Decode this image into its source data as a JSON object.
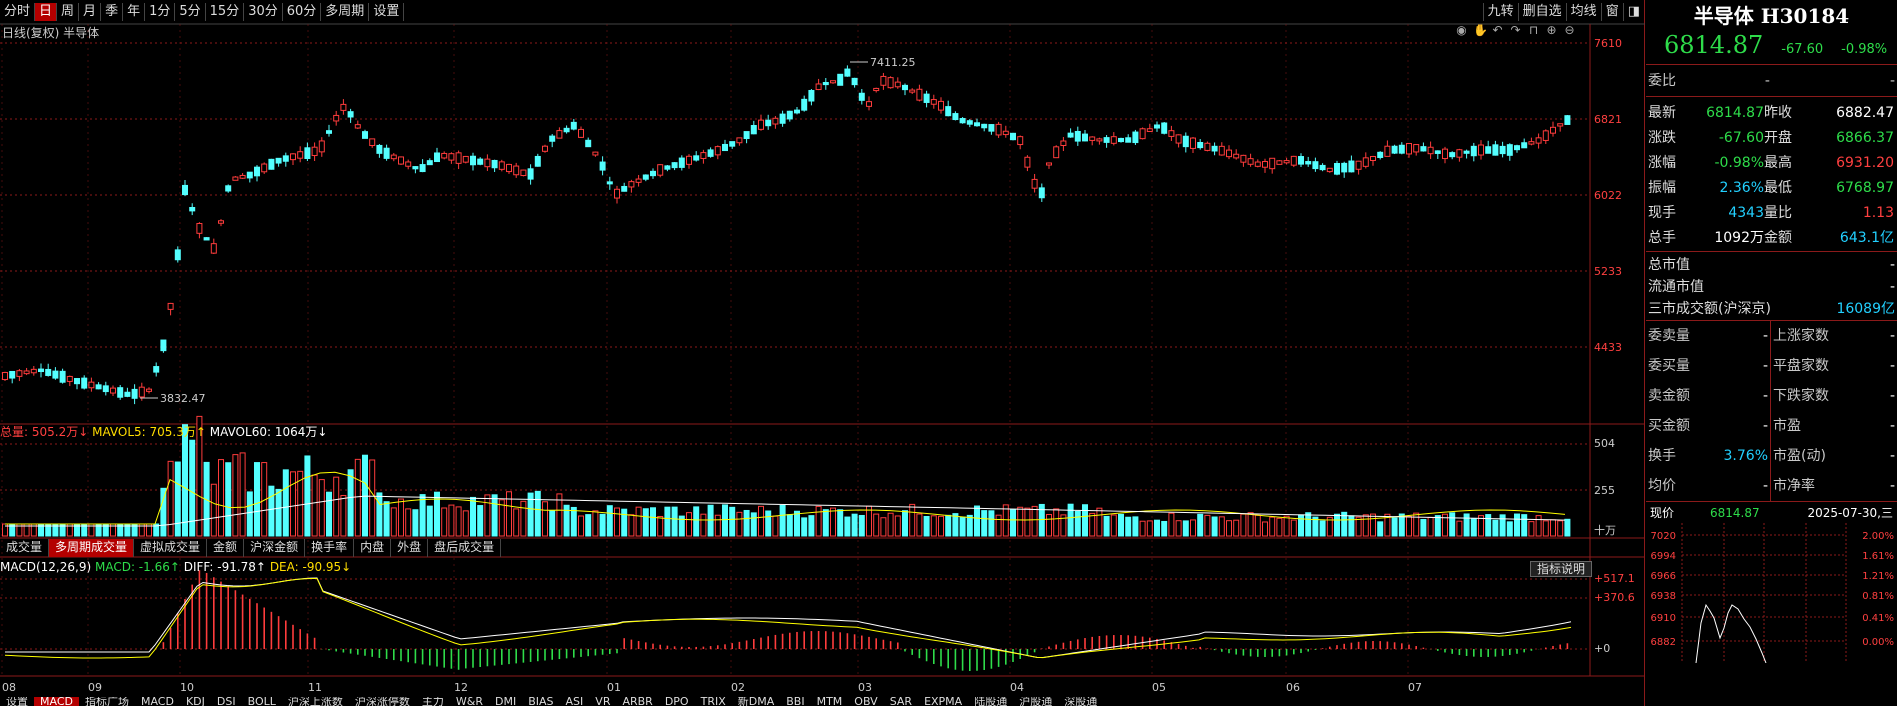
{
  "toolbar": {
    "left_tabs": [
      "分时",
      "日",
      "周",
      "月",
      "季",
      "年",
      "1分",
      "5分",
      "15分",
      "30分",
      "60分",
      "多周期",
      "设置"
    ],
    "active_tab": "日",
    "right_tabs": [
      "九转",
      "删自选",
      "均线",
      "窗",
      ""
    ]
  },
  "chart_title": "日线(复权) 半导体",
  "colors": {
    "up": "#ff3c3c",
    "down": "#54ffff",
    "ma5": "#ffffff",
    "ma10": "#ffff00",
    "grid": "#8b1a1a",
    "accent": "#b40000",
    "green": "#2edc4a"
  },
  "icons": [
    "eye-icon",
    "hand-icon",
    "undo-icon",
    "redo-icon",
    "lock-icon",
    "zoom-in-icon",
    "zoom-out-icon"
  ],
  "price_axis": {
    "labels": [
      "7610",
      "6821",
      "6022",
      "5233",
      "4433"
    ]
  },
  "price_annotations": {
    "high": "7411.25",
    "low": "3832.47"
  },
  "date_axis": [
    "08",
    "09",
    "10",
    "11",
    "12",
    "01",
    "02",
    "03",
    "04",
    "05",
    "06",
    "07"
  ],
  "volume_panel": {
    "legend": {
      "total": "总量: 505.2万↓",
      "ma5": "MAVOL5: 705.3万↑",
      "ma60": "MAVOL60: 1064万↓"
    },
    "axis": [
      "504",
      "255",
      "十万"
    ]
  },
  "sub_tabs": [
    "成交量",
    "多周期成交量",
    "虚拟成交量",
    "金额",
    "沪深金额",
    "换手率",
    "内盘",
    "外盘",
    "盘后成交量"
  ],
  "active_sub_tab": "多周期成交量",
  "macd_panel": {
    "legend": {
      "name": "MACD(12,26,9)",
      "macd": "MACD: -1.66↑",
      "diff": "DIFF: -91.78↑",
      "dea": "DEA: -90.95↓"
    },
    "axis": [
      "+517.1",
      "+370.6",
      "+0"
    ],
    "explain_button": "指标说明"
  },
  "indicator_tabs": [
    "设置",
    "MACD",
    "指标广场",
    "MACD",
    "KDJ",
    "DSI",
    "BOLL",
    "沪深上涨数",
    "沪深涨停数",
    "主力",
    "W&R",
    "DMI",
    "BIAS",
    "ASI",
    "VR",
    "ARBR",
    "DPO",
    "TRIX",
    "新DMA",
    "BBI",
    "MTM",
    "OBV",
    "SAR",
    "EXPMA",
    "陆股通",
    "沪股通",
    "深股通"
  ],
  "quote": {
    "title": "半导体 H30184",
    "price": "6814.87",
    "change": "-67.60",
    "pct": "-0.98%",
    "wb_label": "委比",
    "wb_value": "-",
    "wb_value2": "-",
    "rows": [
      {
        "l": "最新",
        "v": "6814.87",
        "vc": "g",
        "l2": "昨收",
        "v2": "6882.47",
        "v2c": "w"
      },
      {
        "l": "涨跌",
        "v": "-67.60",
        "vc": "g",
        "l2": "开盘",
        "v2": "6866.37",
        "v2c": "g"
      },
      {
        "l": "涨幅",
        "v": "-0.98%",
        "vc": "g",
        "l2": "最高",
        "v2": "6931.20",
        "v2c": "r"
      },
      {
        "l": "振幅",
        "v": "2.36%",
        "vc": "c",
        "l2": "最低",
        "v2": "6768.97",
        "v2c": "g"
      },
      {
        "l": "现手",
        "v": "4343",
        "vc": "c",
        "l2": "量比",
        "v2": "1.13",
        "v2c": "r"
      },
      {
        "l": "总手",
        "v": "1092万",
        "vc": "w",
        "l2": "金额",
        "v2": "643.1亿",
        "v2c": "c"
      }
    ],
    "market": [
      {
        "l": "总市值",
        "v": "-"
      },
      {
        "l": "流通市值",
        "v": "-"
      },
      {
        "l": "三市成交额(沪深京)",
        "v": "16089亿"
      }
    ],
    "stats": [
      {
        "l": "委卖量",
        "v": "-",
        "l2": "上涨家数",
        "v2": "-"
      },
      {
        "l": "委买量",
        "v": "-",
        "l2": "平盘家数",
        "v2": "-"
      },
      {
        "l": "卖金额",
        "v": "-",
        "l2": "下跌家数",
        "v2": "-"
      },
      {
        "l": "买金额",
        "v": "-",
        "l2": "市盈",
        "v2": "-"
      },
      {
        "l": "换手",
        "v": "3.76%",
        "l2": "市盈(动)",
        "v2": "-"
      },
      {
        "l": "均价",
        "v": "-",
        "l2": "市净率",
        "v2": "-"
      }
    ],
    "mini": {
      "label": "现价",
      "price": "6814.87",
      "date": "2025-07-30,三",
      "left_axis": [
        "7020",
        "6994",
        "6966",
        "6938",
        "6910",
        "6882"
      ],
      "right_axis": [
        "2.00%",
        "1.61%",
        "1.21%",
        "0.81%",
        "0.41%",
        "0.00%"
      ]
    }
  }
}
